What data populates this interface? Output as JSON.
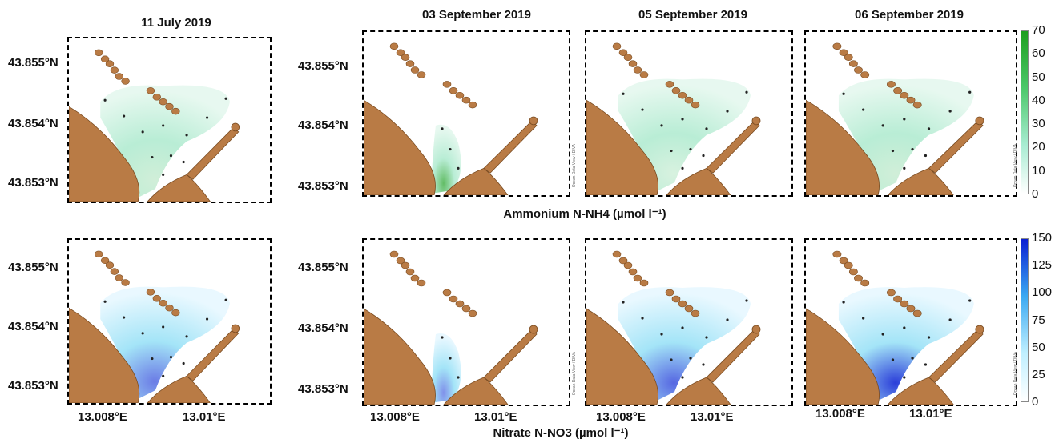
{
  "column_titles": [
    "11 July 2019",
    "03 September 2019",
    "05 September 2019",
    "06 September 2019"
  ],
  "lat_labels": [
    "43.855°N",
    "43.854°N",
    "43.853°N"
  ],
  "lon_labels": [
    "13.008°E",
    "13.01°E"
  ],
  "row_titles": {
    "ammonium": "Ammonium N-NH4 (µmol l⁻¹)",
    "nitrate": "Nitrate N-NO3 (µmol l⁻¹)"
  },
  "watermark": "Ocean Data View / DIVA",
  "colors": {
    "land": "#b97b45",
    "ammonium_max": "#1e9e1e",
    "nitrate_max": "#0a1ed2"
  },
  "chart_data": [
    {
      "type": "heatmap",
      "title": "Ammonium N-NH4 (µmol l⁻¹)",
      "colorbar": {
        "ticks": [
          0,
          10,
          20,
          30,
          40,
          50,
          60,
          70
        ],
        "range": [
          0,
          70
        ]
      },
      "panels": [
        {
          "date": "11 July 2019",
          "intensity": 0.12
        },
        {
          "date": "03 September 2019",
          "intensity": 0.7
        },
        {
          "date": "05 September 2019",
          "intensity": 0.08
        },
        {
          "date": "06 September 2019",
          "intensity": 0.12
        }
      ]
    },
    {
      "type": "heatmap",
      "title": "Nitrate N-NO3 (µmol l⁻¹)",
      "colorbar": {
        "ticks": [
          0,
          25,
          50,
          75,
          100,
          125,
          150
        ],
        "range": [
          0,
          150
        ]
      },
      "panels": [
        {
          "date": "11 July 2019",
          "intensity": 0.6
        },
        {
          "date": "03 September 2019",
          "intensity": 0.5
        },
        {
          "date": "05 September 2019",
          "intensity": 0.7
        },
        {
          "date": "06 September 2019",
          "intensity": 0.9
        }
      ]
    }
  ]
}
